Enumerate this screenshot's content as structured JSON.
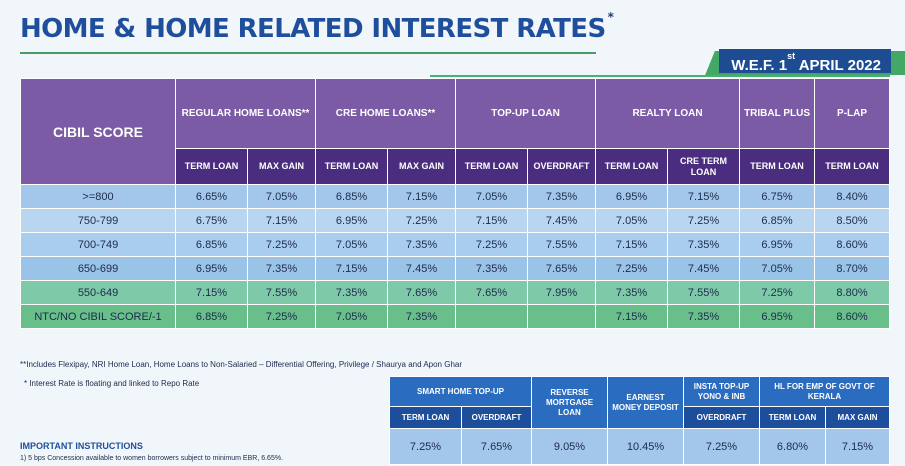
{
  "title": "HOME & HOME RELATED INTEREST RATES",
  "title_mark": "*",
  "wef": {
    "prefix": "W.E.F. 1",
    "sup": "st",
    "suffix": " APRIL 2022"
  },
  "colors": {
    "title": "#1f4f9c",
    "header_group": "#7b5ba5",
    "header_sub": "#4b2d7f",
    "green_accent": "#43a768",
    "secondary_header": "#2a6cc0"
  },
  "main_table": {
    "cibil_header": "CIBIL SCORE",
    "groups": [
      "REGULAR HOME LOANS**",
      "CRE HOME LOANS**",
      "TOP-UP LOAN",
      "REALTY LOAN",
      "TRIBAL PLUS",
      "P-LAP"
    ],
    "subheaders": [
      "TERM LOAN",
      "MAX GAIN",
      "TERM LOAN",
      "MAX GAIN",
      "TERM LOAN",
      "OVERDRAFT",
      "TERM LOAN",
      "CRE TERM LOAN",
      "TERM LOAN",
      "TERM LOAN"
    ],
    "rows": [
      {
        "score": ">=800",
        "values": [
          "6.65%",
          "7.05%",
          "6.85%",
          "7.15%",
          "7.05%",
          "7.35%",
          "6.95%",
          "7.15%",
          "6.75%",
          "8.40%"
        ]
      },
      {
        "score": "750-799",
        "values": [
          "6.75%",
          "7.15%",
          "6.95%",
          "7.25%",
          "7.15%",
          "7.45%",
          "7.05%",
          "7.25%",
          "6.85%",
          "8.50%"
        ]
      },
      {
        "score": "700-749",
        "values": [
          "6.85%",
          "7.25%",
          "7.05%",
          "7.35%",
          "7.25%",
          "7.55%",
          "7.15%",
          "7.35%",
          "6.95%",
          "8.60%"
        ]
      },
      {
        "score": "650-699",
        "values": [
          "6.95%",
          "7.35%",
          "7.15%",
          "7.45%",
          "7.35%",
          "7.65%",
          "7.25%",
          "7.45%",
          "7.05%",
          "8.70%"
        ]
      },
      {
        "score": "550-649",
        "values": [
          "7.15%",
          "7.55%",
          "7.35%",
          "7.65%",
          "7.65%",
          "7.95%",
          "7.35%",
          "7.55%",
          "7.25%",
          "8.80%"
        ]
      },
      {
        "score": "NTC/NO CIBIL SCORE/-1",
        "values": [
          "6.85%",
          "7.25%",
          "7.05%",
          "7.35%",
          "",
          "",
          "7.15%",
          "7.35%",
          "6.95%",
          "8.60%"
        ]
      }
    ]
  },
  "notes": {
    "double_star": "**Includes Flexipay, NRI Home Loan, Home Loans to Non-Salaried – Differential Offering, Privilege / Shaurya and Apon Ghar",
    "single_star": "* Interest Rate is floating and linked to Repo Rate",
    "instructions_title": "IMPORTANT INSTRUCTIONS",
    "instruction_1": "1) 5 bps Concession available to women borrowers subject to minimum EBR, 6.65%."
  },
  "secondary_table": {
    "groups": [
      "SMART HOME TOP-UP",
      "REVERSE MORTGAGE LOAN",
      "EARNEST MONEY DEPOSIT",
      "INSTA TOP-UP YONO & INB",
      "HL FOR EMP OF GOVT OF KERALA"
    ],
    "subheaders": [
      "TERM LOAN",
      "OVERDRAFT",
      "OVERDRAFT",
      "TERM LOAN",
      "MAX GAIN"
    ],
    "values": [
      "7.25%",
      "7.65%",
      "9.05%",
      "10.45%",
      "7.25%",
      "6.80%",
      "7.15%"
    ]
  }
}
